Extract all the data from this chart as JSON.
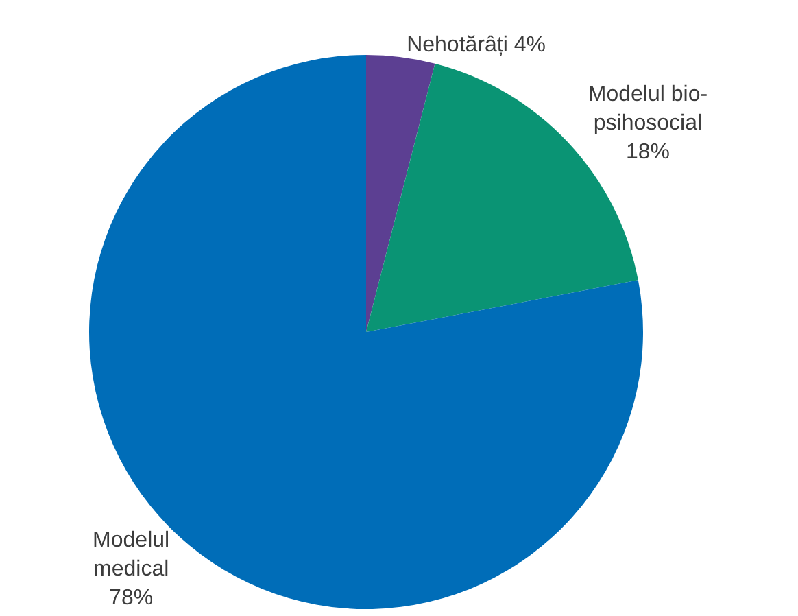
{
  "chart_data": {
    "type": "pie",
    "categories": [
      "Nehotărâți",
      "Modelul bio-psihosocial",
      "Modelul medical"
    ],
    "values": [
      4,
      18,
      78
    ],
    "colors": [
      "#5c3f92",
      "#0a9474",
      "#006db8"
    ],
    "value_labels": [
      "4%",
      "18%",
      "78%"
    ],
    "legend": false
  }
}
